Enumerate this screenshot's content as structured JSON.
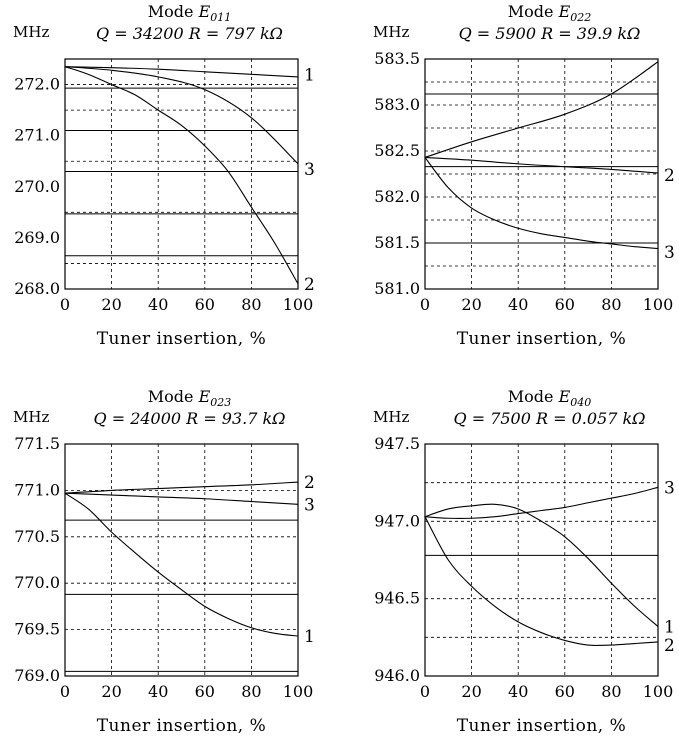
{
  "chart_data": [
    {
      "type": "line",
      "title_prefix": "Mode ",
      "title_mode": "E",
      "title_sub": "011",
      "subtitle": "Q = 34200   R = 797 kΩ",
      "unit": "MHz",
      "xlabel": "Tuner insertion, %",
      "xlim": [
        0,
        100
      ],
      "ylim": [
        268.0,
        272.5
      ],
      "x_ticks": [
        "0",
        "20",
        "40",
        "60",
        "80",
        "100"
      ],
      "y_ticks": [
        {
          "v": 268.0,
          "label": "268.0"
        },
        {
          "v": 269.0,
          "label": "269.0"
        },
        {
          "v": 270.0,
          "label": "270.0"
        },
        {
          "v": 271.0,
          "label": "271.0"
        },
        {
          "v": 272.0,
          "label": "272.0"
        }
      ],
      "dashed_y": [
        268.5,
        269.5,
        270.5,
        271.5,
        272.0
      ],
      "ref_lines": [
        271.93,
        271.1,
        270.3,
        269.47,
        268.65
      ],
      "series": [
        {
          "name": "1",
          "x": [
            0,
            20,
            40,
            60,
            80,
            100
          ],
          "y": [
            272.35,
            272.33,
            272.3,
            272.25,
            272.2,
            272.15
          ],
          "label_y": 272.2
        },
        {
          "name": "3",
          "x": [
            0,
            20,
            40,
            60,
            80,
            100
          ],
          "y": [
            272.35,
            272.28,
            272.15,
            271.9,
            271.35,
            270.45
          ],
          "label_y": 270.35
        },
        {
          "name": "2",
          "x": [
            0,
            10,
            20,
            30,
            40,
            50,
            60,
            70,
            80,
            90,
            100
          ],
          "y": [
            272.35,
            272.2,
            272.0,
            271.8,
            271.5,
            271.2,
            270.8,
            270.3,
            269.6,
            268.9,
            268.1
          ],
          "label_y": 268.1
        }
      ]
    },
    {
      "type": "line",
      "title_prefix": "Mode ",
      "title_mode": "E",
      "title_sub": "022",
      "subtitle": "Q = 5900   R = 39.9 kΩ",
      "unit": "MHz",
      "xlabel": "Tuner insertion, %",
      "xlim": [
        0,
        100
      ],
      "ylim": [
        581.0,
        583.5
      ],
      "x_ticks": [
        "0",
        "20",
        "40",
        "60",
        "80",
        "100"
      ],
      "y_ticks": [
        {
          "v": 581.0,
          "label": "581.0"
        },
        {
          "v": 581.5,
          "label": "581.5"
        },
        {
          "v": 582.0,
          "label": "582.0"
        },
        {
          "v": 582.5,
          "label": "582.5"
        },
        {
          "v": 583.0,
          "label": "583.0"
        },
        {
          "v": 583.5,
          "label": "583.5"
        }
      ],
      "dashed_y": [
        581.25,
        581.5,
        581.75,
        582.0,
        582.25,
        582.5,
        582.75,
        583.0,
        583.25
      ],
      "ref_lines": [
        583.12,
        582.33,
        581.5
      ],
      "series": [
        {
          "name": "",
          "x": [
            0,
            20,
            40,
            60,
            80,
            100
          ],
          "y": [
            582.43,
            582.6,
            582.75,
            582.9,
            583.12,
            583.47
          ],
          "label_y": 583.47
        },
        {
          "name": "2",
          "x": [
            0,
            20,
            40,
            60,
            80,
            100
          ],
          "y": [
            582.43,
            582.4,
            582.36,
            582.33,
            582.3,
            582.26
          ],
          "label_y": 582.24
        },
        {
          "name": "3",
          "x": [
            0,
            10,
            20,
            30,
            40,
            50,
            60,
            70,
            80,
            90,
            100
          ],
          "y": [
            582.43,
            582.1,
            581.88,
            581.75,
            581.66,
            581.6,
            581.56,
            581.52,
            581.49,
            581.46,
            581.44
          ],
          "label_y": 581.4
        }
      ]
    },
    {
      "type": "line",
      "title_prefix": "Mode ",
      "title_mode": "E",
      "title_sub": "023",
      "subtitle": "Q = 24000   R = 93.7 kΩ",
      "unit": "MHz",
      "xlabel": "Tuner insertion, %",
      "xlim": [
        0,
        100
      ],
      "ylim": [
        769.0,
        771.5
      ],
      "x_ticks": [
        "0",
        "20",
        "40",
        "60",
        "80",
        "100"
      ],
      "y_ticks": [
        {
          "v": 769.0,
          "label": "769.0"
        },
        {
          "v": 769.5,
          "label": "769.5"
        },
        {
          "v": 770.0,
          "label": "770.0"
        },
        {
          "v": 770.5,
          "label": "770.5"
        },
        {
          "v": 771.0,
          "label": "771.0"
        },
        {
          "v": 771.5,
          "label": "771.5"
        }
      ],
      "dashed_y": [
        769.5,
        770.0,
        770.5,
        771.0
      ],
      "ref_lines": [
        770.68,
        769.88,
        769.05
      ],
      "series": [
        {
          "name": "2",
          "x": [
            0,
            20,
            40,
            60,
            80,
            100
          ],
          "y": [
            770.97,
            771.0,
            771.02,
            771.04,
            771.06,
            771.09
          ],
          "label_y": 771.09
        },
        {
          "name": "3",
          "x": [
            0,
            20,
            40,
            60,
            80,
            100
          ],
          "y": [
            770.97,
            770.95,
            770.93,
            770.91,
            770.88,
            770.85
          ],
          "label_y": 770.85
        },
        {
          "name": "1",
          "x": [
            0,
            10,
            20,
            30,
            40,
            50,
            60,
            70,
            80,
            90,
            100
          ],
          "y": [
            770.97,
            770.8,
            770.55,
            770.33,
            770.12,
            769.93,
            769.75,
            769.62,
            769.52,
            769.46,
            769.43
          ],
          "label_y": 769.43
        }
      ]
    },
    {
      "type": "line",
      "title_prefix": "Mode ",
      "title_mode": "E",
      "title_sub": "040",
      "subtitle": "Q = 7500   R = 0.057 kΩ",
      "unit": "MHz",
      "xlabel": "Tuner insertion, %",
      "xlim": [
        0,
        100
      ],
      "ylim": [
        946.0,
        947.5
      ],
      "x_ticks": [
        "0",
        "20",
        "40",
        "60",
        "80",
        "100"
      ],
      "y_ticks": [
        {
          "v": 946.0,
          "label": "946.0"
        },
        {
          "v": 946.5,
          "label": "946.5"
        },
        {
          "v": 947.0,
          "label": "947.0"
        },
        {
          "v": 947.5,
          "label": "947.5"
        }
      ],
      "dashed_y": [
        946.25,
        946.5,
        947.0,
        947.25
      ],
      "ref_lines": [
        946.78
      ],
      "series": [
        {
          "name": "3",
          "x": [
            0,
            10,
            20,
            30,
            40,
            50,
            60,
            70,
            80,
            90,
            100
          ],
          "y": [
            947.03,
            947.02,
            947.02,
            947.03,
            947.05,
            947.07,
            947.09,
            947.12,
            947.15,
            947.18,
            947.22
          ],
          "label_y": 947.22
        },
        {
          "name": "1",
          "x": [
            0,
            10,
            20,
            30,
            40,
            50,
            60,
            70,
            80,
            90,
            100
          ],
          "y": [
            947.03,
            947.08,
            947.1,
            947.11,
            947.08,
            947.0,
            946.9,
            946.76,
            946.6,
            946.45,
            946.32
          ],
          "label_y": 946.32
        },
        {
          "name": "2",
          "x": [
            0,
            10,
            20,
            30,
            40,
            50,
            60,
            70,
            80,
            90,
            100
          ],
          "y": [
            947.03,
            946.75,
            946.58,
            946.45,
            946.35,
            946.28,
            946.23,
            946.2,
            946.2,
            946.21,
            946.22
          ],
          "label_y": 946.2
        }
      ]
    }
  ]
}
